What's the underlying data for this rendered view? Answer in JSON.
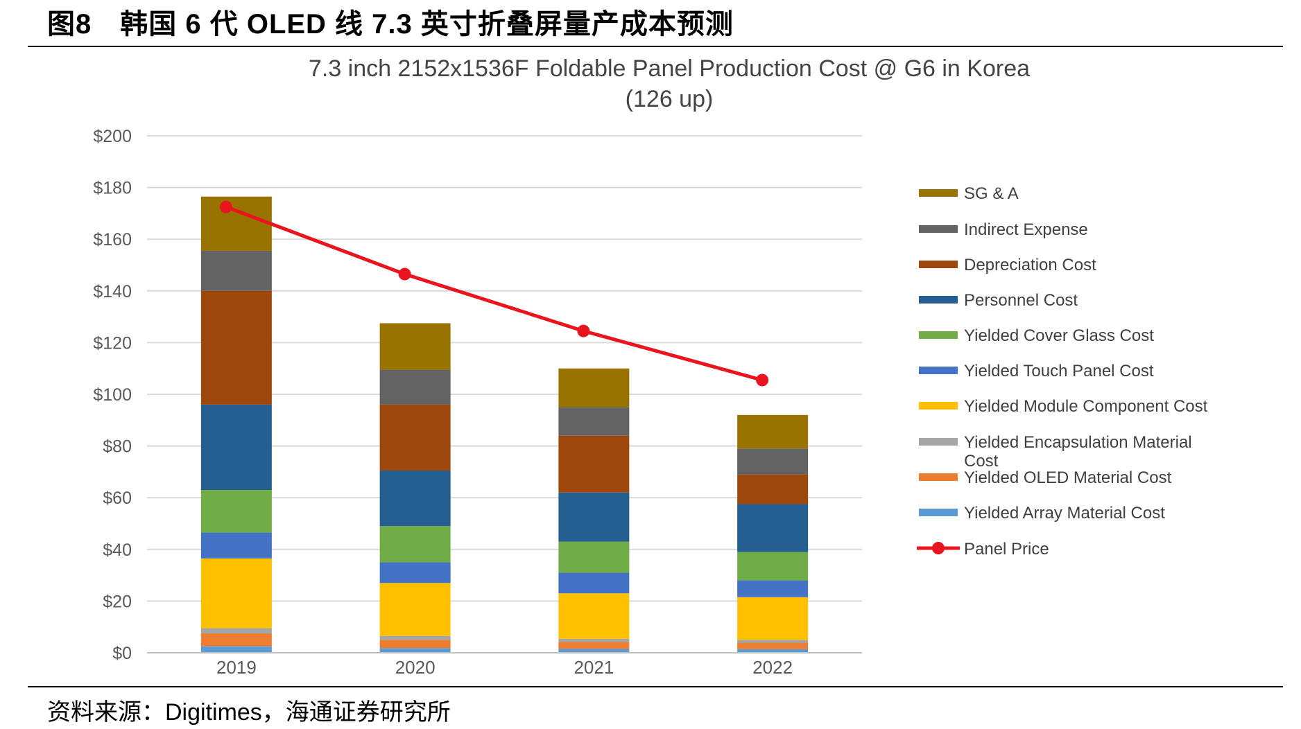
{
  "figure_title": "图8　韩国 6 代 OLED 线 7.3 英寸折叠屏量产成本预测",
  "source": "资料来源：Digitimes，海通证券研究所",
  "chart_data": {
    "type": "bar",
    "stacked": true,
    "title": "7.3 inch 2152x1536F Foldable Panel Production Cost @ G6  in Korea",
    "subtitle": "(126 up)",
    "xlabel": "",
    "ylabel": "",
    "ylim": [
      0,
      200
    ],
    "yticks": [
      0,
      20,
      40,
      60,
      80,
      100,
      120,
      140,
      160,
      180,
      200
    ],
    "ytick_labels": [
      "$0",
      "$20",
      "$40",
      "$60",
      "$80",
      "$100",
      "$120",
      "$140",
      "$160",
      "$180",
      "$200"
    ],
    "grid": true,
    "legend_position": "right",
    "categories": [
      "2019",
      "2020",
      "2021",
      "2022"
    ],
    "series": [
      {
        "name": "Yielded Array Material Cost",
        "color": "#5b9bd5",
        "values": [
          2.5,
          1.8,
          1.5,
          1.4
        ]
      },
      {
        "name": "Yielded OLED Material Cost",
        "color": "#ed7d31",
        "values": [
          5,
          3.2,
          2.7,
          2.5
        ]
      },
      {
        "name": "Yielded Encapsulation Material Cost",
        "color": "#a5a5a5",
        "values": [
          2,
          1.5,
          1.2,
          1.1
        ]
      },
      {
        "name": "Yielded Module Component Cost",
        "color": "#ffc000",
        "values": [
          27,
          20.5,
          17.6,
          16.5
        ]
      },
      {
        "name": "Yielded Touch Panel Cost",
        "color": "#4472c4",
        "values": [
          10,
          8,
          8,
          6.5
        ]
      },
      {
        "name": "Yielded Cover Glass Cost",
        "color": "#70ad47",
        "values": [
          16.5,
          14,
          12,
          11
        ]
      },
      {
        "name": "Personnel Cost",
        "color": "#255e91",
        "values": [
          33,
          21.5,
          19,
          18.5
        ]
      },
      {
        "name": "Depreciation Cost",
        "color": "#9e480e",
        "values": [
          44,
          25.5,
          22,
          11.5
        ]
      },
      {
        "name": "Indirect Expense",
        "color": "#636363",
        "values": [
          15.5,
          13.5,
          11,
          10
        ]
      },
      {
        "name": "SG & A",
        "color": "#997300",
        "values": [
          21,
          18,
          15,
          13
        ]
      }
    ],
    "line_series": {
      "name": "Panel Price",
      "color": "#e8141e",
      "values": [
        172.5,
        146.5,
        124.5,
        105.5
      ]
    }
  }
}
